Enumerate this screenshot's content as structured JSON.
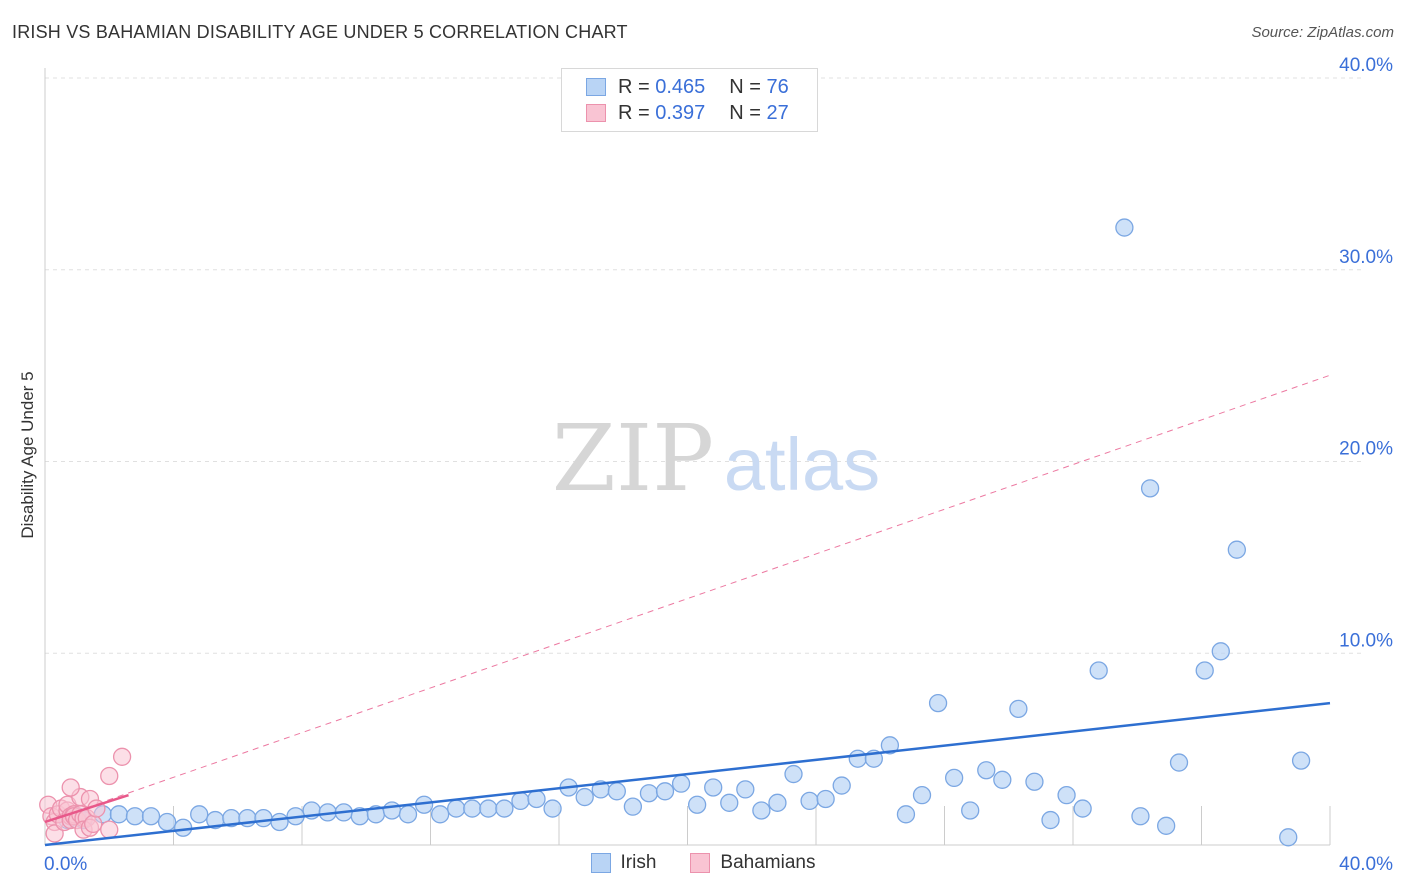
{
  "header": {
    "title": "IRISH VS BAHAMIAN DISABILITY AGE UNDER 5 CORRELATION CHART",
    "source": "Source: ZipAtlas.com"
  },
  "legend": {
    "rows": [
      {
        "r_label": "R =",
        "r_value": "0.465",
        "n_label": "N =",
        "n_value": "76"
      },
      {
        "r_label": "R =",
        "r_value": "0.397",
        "n_label": "N =",
        "n_value": "27"
      }
    ],
    "series": [
      "Irish",
      "Bahamians"
    ]
  },
  "watermark": {
    "zip": "ZIP",
    "atlas": "atlas"
  },
  "colors": {
    "irish_fill": "#b9d4f5",
    "irish_stroke": "#7ba7e3",
    "irish_line": "#2e6fd0",
    "bahamian_fill": "#f9c4d3",
    "bahamian_stroke": "#ec92ad",
    "bahamian_line": "#e8588a",
    "axis_text": "#3a6fd8",
    "grid": "#e0e0e0"
  },
  "chart_data": {
    "type": "scatter",
    "title": "IRISH VS BAHAMIAN DISABILITY AGE UNDER 5 CORRELATION CHART",
    "xlabel": "",
    "ylabel": "Disability Age Under 5",
    "xlim": [
      0,
      40
    ],
    "ylim": [
      0,
      40
    ],
    "x_tick_labels": [
      "0.0%",
      "40.0%"
    ],
    "y_tick_labels": [
      "10.0%",
      "20.0%",
      "30.0%",
      "40.0%"
    ],
    "y_ticks": [
      10,
      20,
      30,
      40
    ],
    "grid": true,
    "series": [
      {
        "name": "Irish",
        "R": 0.465,
        "N": 76,
        "trend": {
          "x": [
            0,
            40
          ],
          "y": [
            0.0,
            7.4
          ],
          "style": "solid"
        },
        "points": [
          [
            0.7,
            1.3
          ],
          [
            1.0,
            1.5
          ],
          [
            1.2,
            1.3
          ],
          [
            1.8,
            1.6
          ],
          [
            2.3,
            1.6
          ],
          [
            2.8,
            1.5
          ],
          [
            3.3,
            1.5
          ],
          [
            3.8,
            1.2
          ],
          [
            4.3,
            0.9
          ],
          [
            4.8,
            1.6
          ],
          [
            5.3,
            1.3
          ],
          [
            5.8,
            1.4
          ],
          [
            6.3,
            1.4
          ],
          [
            6.8,
            1.4
          ],
          [
            7.3,
            1.2
          ],
          [
            7.8,
            1.5
          ],
          [
            8.3,
            1.8
          ],
          [
            8.8,
            1.7
          ],
          [
            9.3,
            1.7
          ],
          [
            9.8,
            1.5
          ],
          [
            10.3,
            1.6
          ],
          [
            10.8,
            1.8
          ],
          [
            11.3,
            1.6
          ],
          [
            11.8,
            2.1
          ],
          [
            12.3,
            1.6
          ],
          [
            12.8,
            1.9
          ],
          [
            13.3,
            1.9
          ],
          [
            13.8,
            1.9
          ],
          [
            14.3,
            1.9
          ],
          [
            14.8,
            2.3
          ],
          [
            15.3,
            2.4
          ],
          [
            15.8,
            1.9
          ],
          [
            16.3,
            3.0
          ],
          [
            16.8,
            2.5
          ],
          [
            17.3,
            2.9
          ],
          [
            17.8,
            2.8
          ],
          [
            18.3,
            2.0
          ],
          [
            18.8,
            2.7
          ],
          [
            19.3,
            2.8
          ],
          [
            19.8,
            3.2
          ],
          [
            20.3,
            2.1
          ],
          [
            20.8,
            3.0
          ],
          [
            21.3,
            2.2
          ],
          [
            21.8,
            2.9
          ],
          [
            22.3,
            1.8
          ],
          [
            22.8,
            2.2
          ],
          [
            23.3,
            3.7
          ],
          [
            23.8,
            2.3
          ],
          [
            24.3,
            2.4
          ],
          [
            24.8,
            3.1
          ],
          [
            25.3,
            4.5
          ],
          [
            25.8,
            4.5
          ],
          [
            26.3,
            5.2
          ],
          [
            26.8,
            1.6
          ],
          [
            27.3,
            2.6
          ],
          [
            27.8,
            7.4
          ],
          [
            28.3,
            3.5
          ],
          [
            28.8,
            1.8
          ],
          [
            29.3,
            3.9
          ],
          [
            29.8,
            3.4
          ],
          [
            30.3,
            7.1
          ],
          [
            30.8,
            3.3
          ],
          [
            31.3,
            1.3
          ],
          [
            31.8,
            2.6
          ],
          [
            32.3,
            1.9
          ],
          [
            32.8,
            9.1
          ],
          [
            33.6,
            32.2
          ],
          [
            34.1,
            1.5
          ],
          [
            34.4,
            18.6
          ],
          [
            34.9,
            1.0
          ],
          [
            35.3,
            4.3
          ],
          [
            36.1,
            9.1
          ],
          [
            36.6,
            10.1
          ],
          [
            37.1,
            15.4
          ],
          [
            38.7,
            0.4
          ],
          [
            39.1,
            4.4
          ]
        ]
      },
      {
        "name": "Bahamians",
        "R": 0.397,
        "N": 27,
        "trend": {
          "x": [
            0,
            2.6
          ],
          "y": [
            1.2,
            2.6
          ],
          "style": "solid"
        },
        "trend_extended": {
          "x": [
            0,
            40
          ],
          "y": [
            1.2,
            24.5
          ],
          "style": "dashed"
        },
        "points": [
          [
            0.1,
            2.1
          ],
          [
            0.2,
            1.5
          ],
          [
            0.3,
            1.2
          ],
          [
            0.3,
            0.6
          ],
          [
            0.4,
            1.6
          ],
          [
            0.5,
            1.9
          ],
          [
            0.6,
            1.2
          ],
          [
            0.7,
            1.8
          ],
          [
            0.7,
            2.1
          ],
          [
            0.8,
            1.5
          ],
          [
            0.8,
            1.3
          ],
          [
            0.9,
            1.6
          ],
          [
            0.9,
            1.5
          ],
          [
            1.0,
            1.3
          ],
          [
            1.1,
            1.6
          ],
          [
            1.2,
            1.4
          ],
          [
            1.3,
            1.4
          ],
          [
            1.1,
            2.5
          ],
          [
            1.2,
            0.8
          ],
          [
            1.4,
            2.4
          ],
          [
            1.4,
            0.9
          ],
          [
            1.5,
            1.1
          ],
          [
            1.6,
            1.9
          ],
          [
            2.0,
            0.8
          ],
          [
            2.0,
            3.6
          ],
          [
            2.4,
            4.6
          ],
          [
            0.8,
            3.0
          ]
        ]
      }
    ]
  }
}
